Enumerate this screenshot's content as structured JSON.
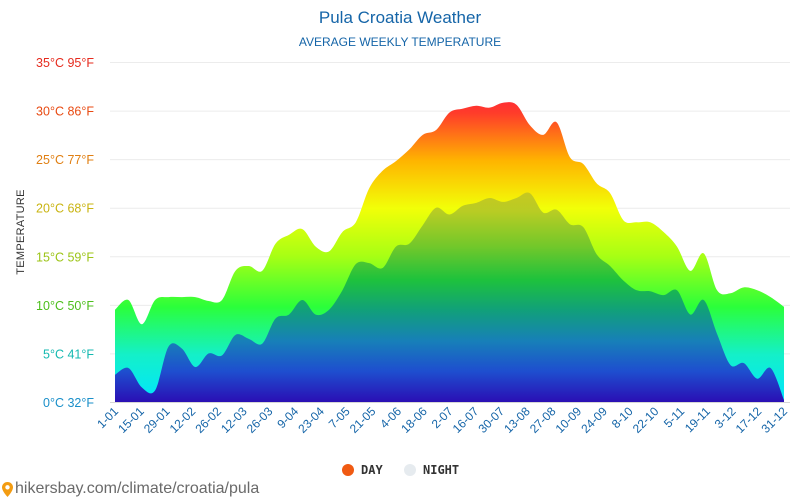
{
  "chart_data": {
    "type": "area",
    "title": "Pula Croatia Weather",
    "subtitle": "AVERAGE WEEKLY TEMPERATURE",
    "ylabel": "TEMPERATURE",
    "ylim": [
      0,
      35
    ],
    "yticks": [
      {
        "value": 0,
        "label": "0°C 32°F",
        "color": "#1a8fc9"
      },
      {
        "value": 5,
        "label": "5°C 41°F",
        "color": "#14b9b0"
      },
      {
        "value": 10,
        "label": "10°C 50°F",
        "color": "#4cbf1c"
      },
      {
        "value": 15,
        "label": "15°C 59°F",
        "color": "#9cc416"
      },
      {
        "value": 20,
        "label": "20°C 68°F",
        "color": "#c9b411"
      },
      {
        "value": 25,
        "label": "25°C 77°F",
        "color": "#e07f12"
      },
      {
        "value": 30,
        "label": "30°C 86°F",
        "color": "#e84a12"
      },
      {
        "value": 35,
        "label": "35°C 95°F",
        "color": "#e62b1e"
      }
    ],
    "xtick_labels": [
      "1-01",
      "15-01",
      "29-01",
      "12-02",
      "26-02",
      "12-03",
      "26-03",
      "9-04",
      "23-04",
      "7-05",
      "21-05",
      "4-06",
      "18-06",
      "2-07",
      "16-07",
      "30-07",
      "13-08",
      "27-08",
      "10-09",
      "24-09",
      "8-10",
      "22-10",
      "5-11",
      "19-11",
      "3-12",
      "17-12",
      "31-12"
    ],
    "grid": true,
    "legend_position": "bottom-center",
    "series": [
      {
        "name": "DAY",
        "color": "#f05a12",
        "values": [
          9.5,
          10.5,
          8.0,
          10.5,
          10.8,
          10.8,
          10.8,
          10.4,
          10.5,
          13.5,
          14.0,
          13.5,
          16.3,
          17.2,
          17.8,
          16.0,
          15.5,
          17.5,
          18.5,
          22.0,
          23.8,
          24.8,
          26.0,
          27.5,
          28.0,
          29.8,
          30.2,
          30.5,
          30.3,
          30.8,
          30.6,
          28.5,
          27.5,
          28.8,
          25.2,
          24.5,
          22.5,
          21.5,
          18.7,
          18.5,
          18.5,
          17.5,
          16.0,
          13.5,
          15.3,
          11.5,
          11.2,
          11.8,
          11.5,
          10.8,
          9.8
        ]
      },
      {
        "name": "NIGHT",
        "color": "#e6ebef",
        "values": [
          2.8,
          3.5,
          1.5,
          1.2,
          5.7,
          5.5,
          3.6,
          5.0,
          4.8,
          6.9,
          6.5,
          6.0,
          8.6,
          9.0,
          10.5,
          9.0,
          9.5,
          11.5,
          14.2,
          14.3,
          13.8,
          16.0,
          16.3,
          18.2,
          20.0,
          19.3,
          20.2,
          20.5,
          21.0,
          20.6,
          21.0,
          21.5,
          19.5,
          19.8,
          18.3,
          18.0,
          15.2,
          14.0,
          12.5,
          11.5,
          11.4,
          11.0,
          11.5,
          9.0,
          10.5,
          7.0,
          3.8,
          4.0,
          2.4,
          3.5,
          0.2
        ]
      }
    ]
  },
  "footer": {
    "text": "hikersbay.com/climate/croatia/pula",
    "pin_icon": "location-pin-icon"
  }
}
